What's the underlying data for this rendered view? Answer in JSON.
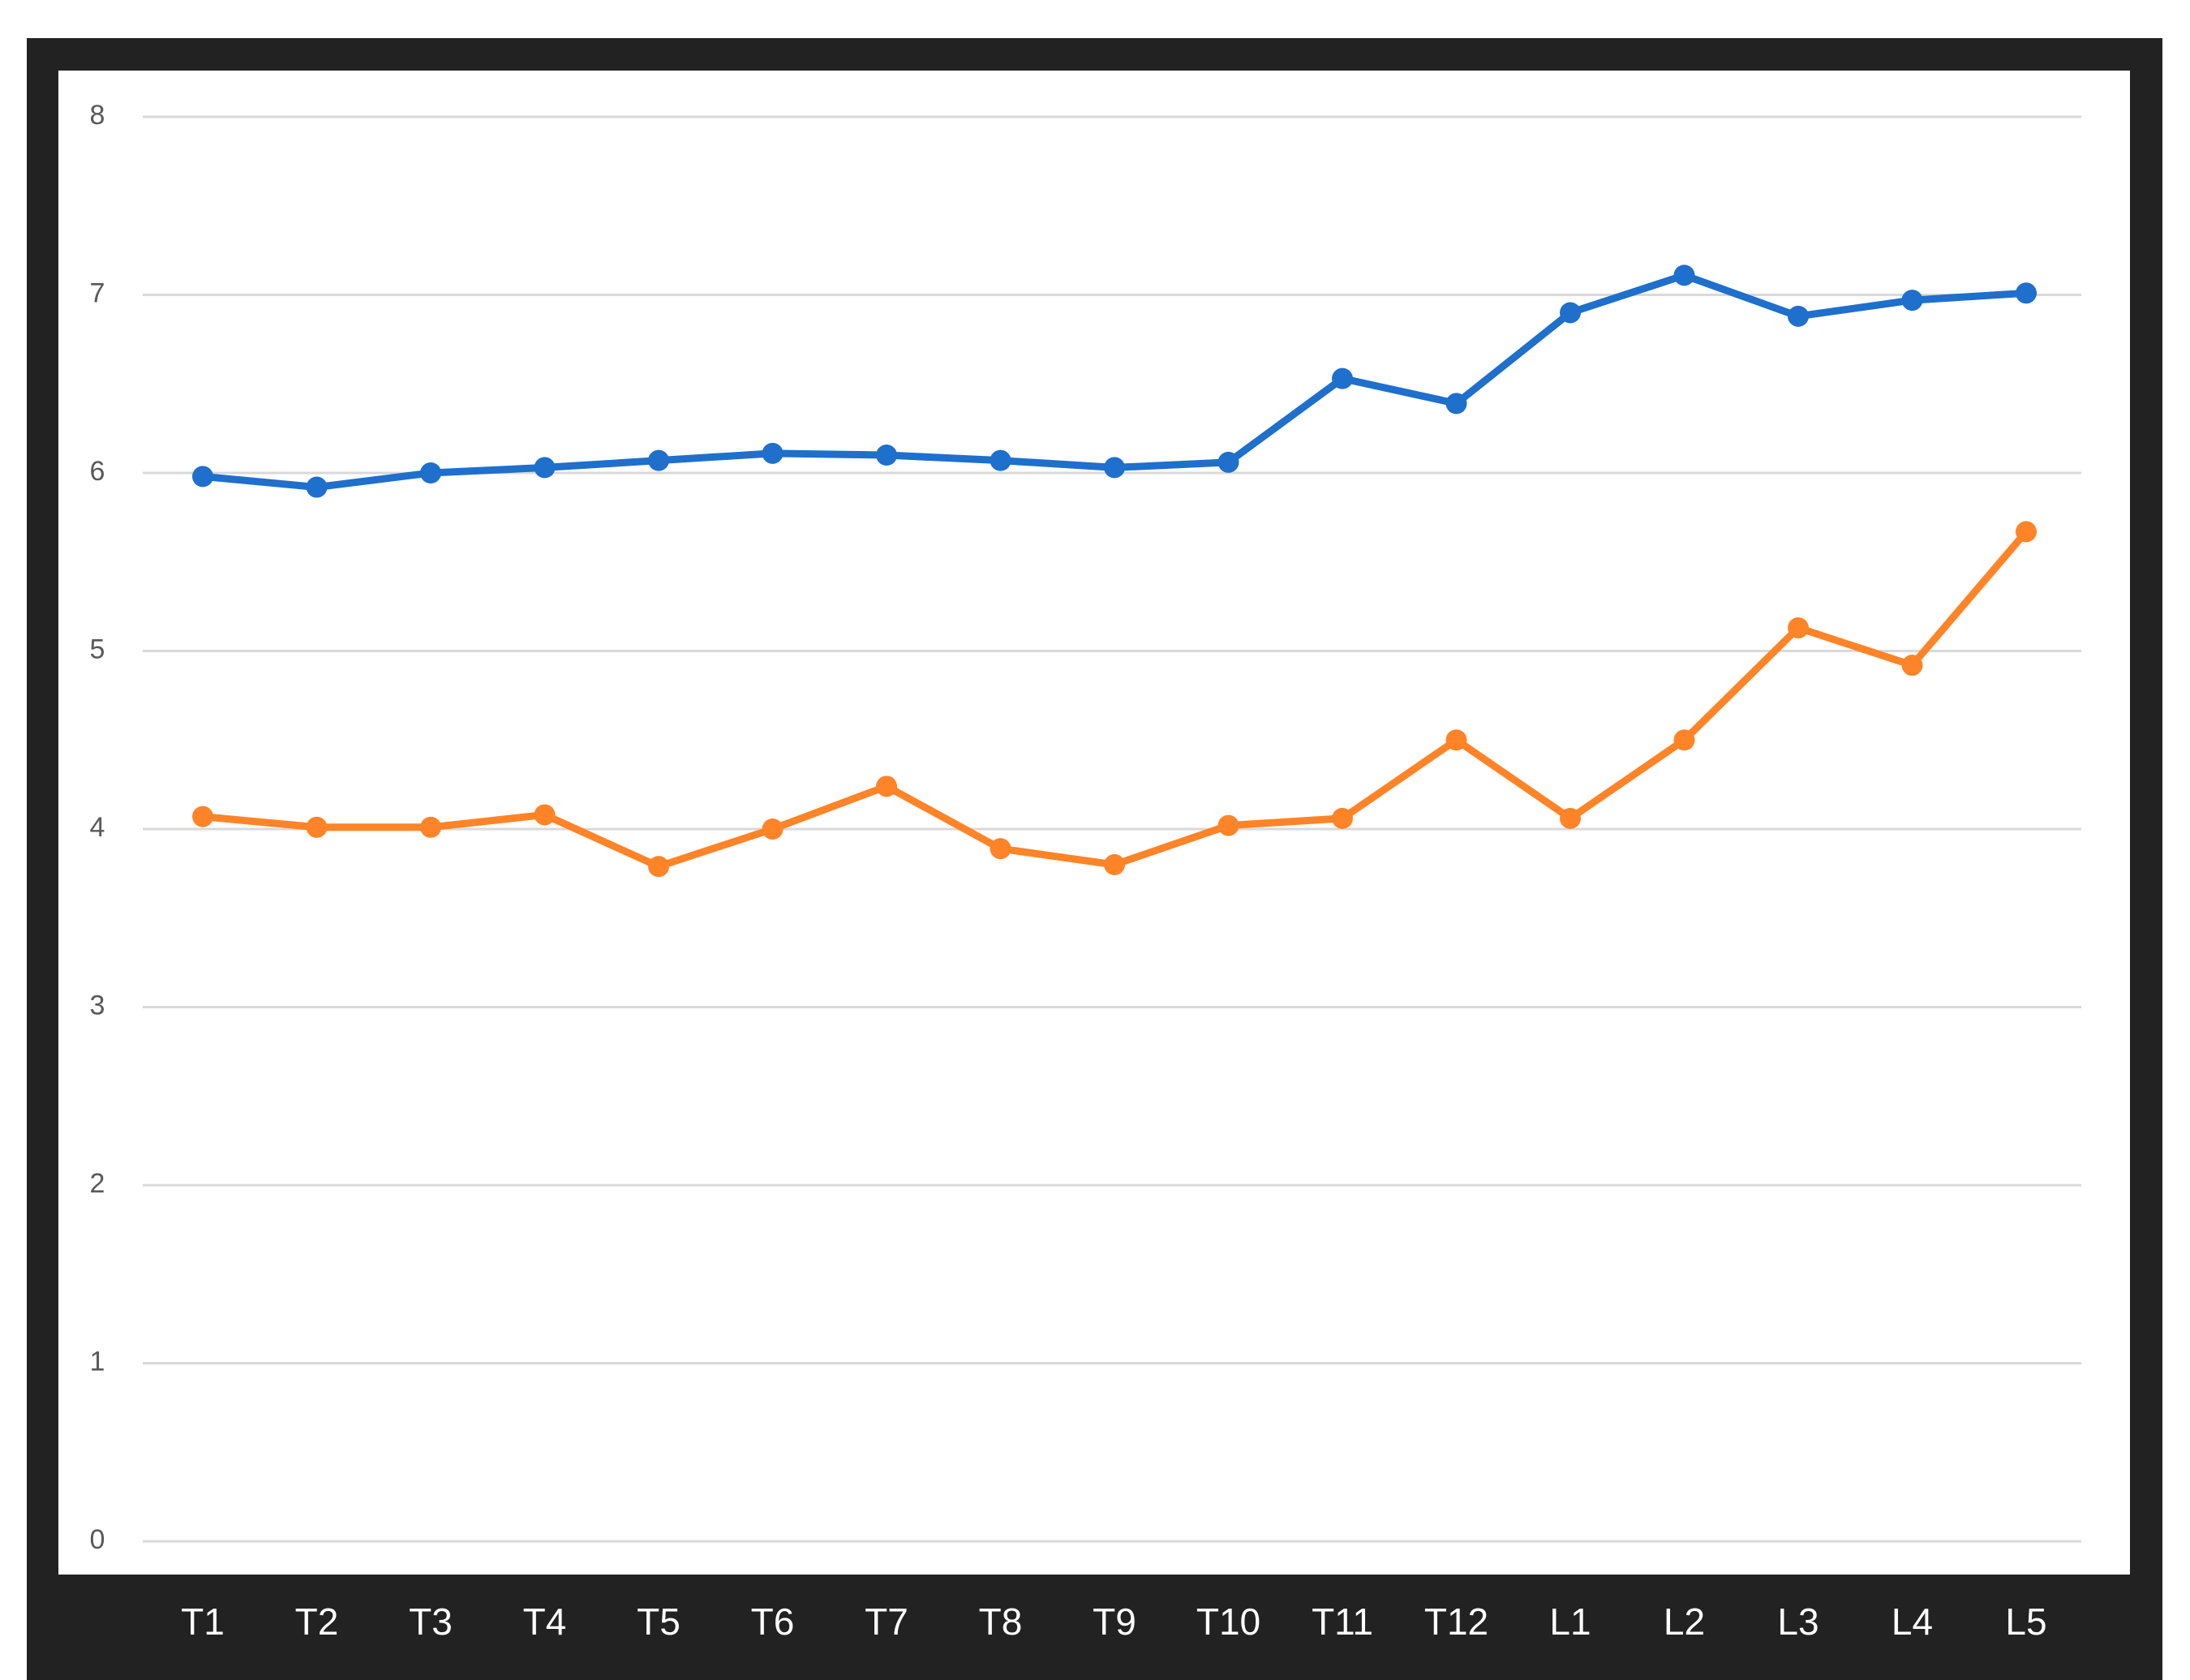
{
  "chart_data": {
    "type": "line",
    "categories": [
      "T1",
      "T2",
      "T3",
      "T4",
      "T5",
      "T6",
      "T7",
      "T8",
      "T9",
      "T10",
      "T11",
      "T12",
      "L1",
      "L2",
      "L3",
      "L4",
      "L5"
    ],
    "series": [
      {
        "color": "#1f6fcc",
        "values": [
          5.98,
          5.92,
          6.0,
          6.03,
          6.07,
          6.11,
          6.1,
          6.07,
          6.03,
          6.06,
          6.53,
          6.39,
          6.9,
          7.11,
          6.88,
          6.97,
          7.01
        ]
      },
      {
        "color": "#ff8428",
        "values": [
          4.07,
          4.01,
          4.01,
          4.08,
          3.79,
          4.0,
          4.24,
          3.89,
          3.8,
          4.02,
          4.06,
          4.5,
          4.06,
          4.5,
          5.13,
          4.92,
          5.67
        ]
      }
    ],
    "ylim": [
      0,
      8
    ],
    "yticks": [
      0,
      1,
      2,
      3,
      4,
      5,
      6,
      7,
      8
    ],
    "grid": true
  }
}
